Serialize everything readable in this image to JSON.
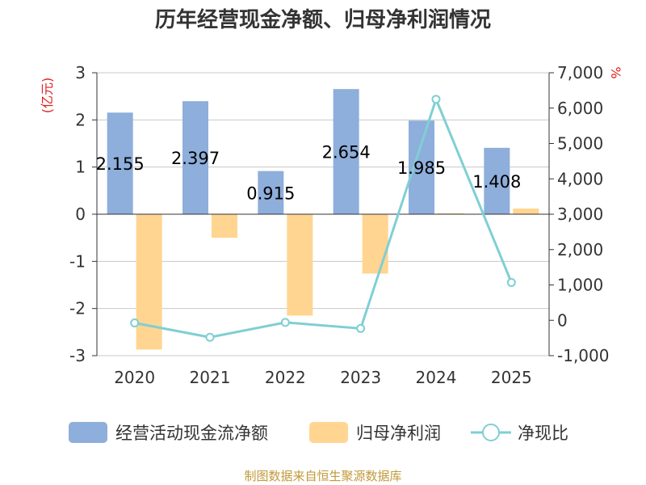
{
  "title": "历年经营现金净额、归母净利润情况",
  "left_unit": "(亿元)",
  "right_unit": "%",
  "source": "制图数据来自恒生聚源数据库",
  "colors": {
    "cash_flow": "#8eaedb",
    "net_profit": "#ffd591",
    "ratio": "#7fcfd4"
  },
  "chart_data": {
    "type": "bar+line",
    "title": "历年经营现金净额、归母净利润情况",
    "categories": [
      "2020",
      "2021",
      "2022",
      "2023",
      "2024",
      "2025"
    ],
    "left_axis": {
      "label": "(亿元)",
      "ylim": [
        -3,
        3
      ],
      "ticks": [
        "3",
        "2",
        "1",
        "0",
        "-1",
        "-2",
        "-3"
      ]
    },
    "right_axis": {
      "label": "%",
      "ylim": [
        -1000,
        7000
      ],
      "ticks": [
        "7,000",
        "6,000",
        "5,000",
        "4,000",
        "3,000",
        "2,000",
        "1,000",
        "0",
        "-1,000"
      ]
    },
    "series": [
      {
        "name": "经营活动现金流净额",
        "type": "bar",
        "axis": "left",
        "values": [
          2.155,
          2.397,
          0.915,
          2.654,
          1.985,
          1.408
        ],
        "labels": [
          "2.155",
          "2.397",
          "0.915",
          "2.654",
          "1.985",
          "1.408"
        ]
      },
      {
        "name": "归母净利润",
        "type": "bar",
        "axis": "left",
        "values": [
          -2.87,
          -0.5,
          -2.15,
          -1.26,
          0.02,
          0.12
        ]
      },
      {
        "name": "净现比",
        "type": "line",
        "axis": "right",
        "values": [
          -75,
          -480,
          -60,
          -230,
          6250,
          1070
        ]
      }
    ],
    "legend": [
      "经营活动现金流净额",
      "归母净利润",
      "净现比"
    ],
    "grid": true
  }
}
